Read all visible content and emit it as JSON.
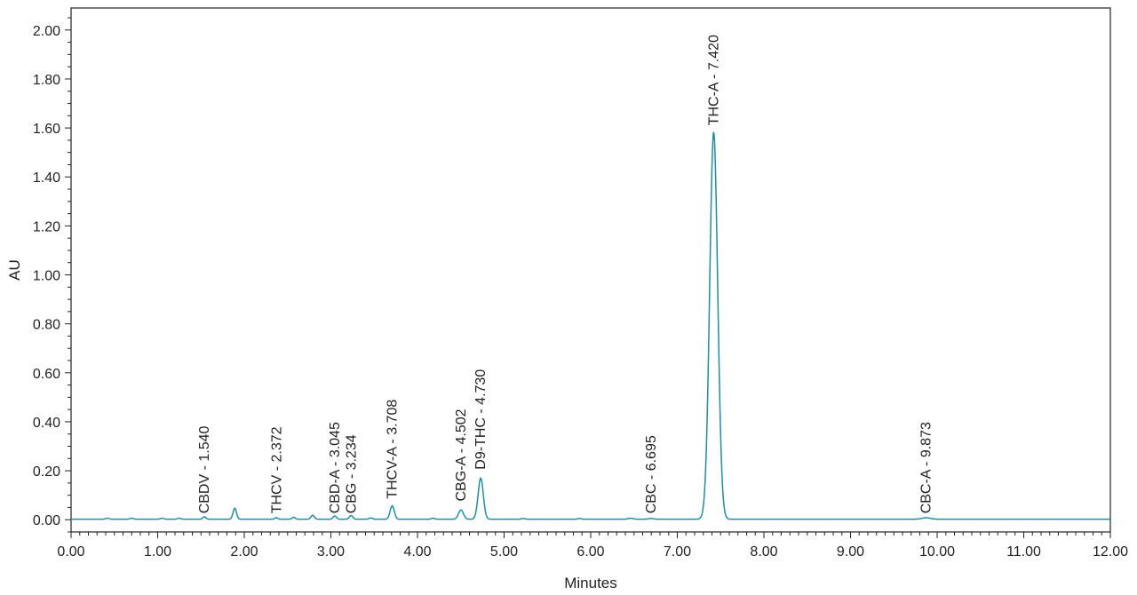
{
  "chart_data": {
    "type": "line",
    "title": "",
    "xlabel": "Minutes",
    "ylabel": "AU",
    "xlim": [
      0,
      12
    ],
    "ylim": [
      -0.05,
      2.09
    ],
    "x_ticks": [
      "0.00",
      "1.00",
      "2.00",
      "3.00",
      "4.00",
      "5.00",
      "6.00",
      "7.00",
      "8.00",
      "9.00",
      "10.00",
      "11.00",
      "12.00"
    ],
    "y_ticks": [
      "0.00",
      "0.20",
      "0.40",
      "0.60",
      "0.80",
      "1.00",
      "1.20",
      "1.40",
      "1.60",
      "1.80",
      "2.00"
    ],
    "grid": false,
    "line_color": "#1b8fa8",
    "baseline": 0.002,
    "peaks": [
      {
        "rt": 0.42,
        "height": 0.004,
        "width": 0.02
      },
      {
        "rt": 0.7,
        "height": 0.004,
        "width": 0.02
      },
      {
        "rt": 1.05,
        "height": 0.004,
        "width": 0.02
      },
      {
        "rt": 1.25,
        "height": 0.004,
        "width": 0.02
      },
      {
        "rt": 1.54,
        "height": 0.01,
        "width": 0.018
      },
      {
        "rt": 1.89,
        "height": 0.045,
        "width": 0.02
      },
      {
        "rt": 2.37,
        "height": 0.006,
        "width": 0.018
      },
      {
        "rt": 2.57,
        "height": 0.008,
        "width": 0.018
      },
      {
        "rt": 2.79,
        "height": 0.016,
        "width": 0.02
      },
      {
        "rt": 3.045,
        "height": 0.013,
        "width": 0.02
      },
      {
        "rt": 3.234,
        "height": 0.015,
        "width": 0.02
      },
      {
        "rt": 3.46,
        "height": 0.005,
        "width": 0.02
      },
      {
        "rt": 3.708,
        "height": 0.055,
        "width": 0.024
      },
      {
        "rt": 4.18,
        "height": 0.004,
        "width": 0.02
      },
      {
        "rt": 4.502,
        "height": 0.038,
        "width": 0.028
      },
      {
        "rt": 4.73,
        "height": 0.168,
        "width": 0.03
      },
      {
        "rt": 5.22,
        "height": 0.003,
        "width": 0.02
      },
      {
        "rt": 5.87,
        "height": 0.003,
        "width": 0.02
      },
      {
        "rt": 6.46,
        "height": 0.004,
        "width": 0.03
      },
      {
        "rt": 6.695,
        "height": 0.003,
        "width": 0.03
      },
      {
        "rt": 7.42,
        "height": 1.58,
        "width": 0.046
      },
      {
        "rt": 9.873,
        "height": 0.006,
        "width": 0.05
      }
    ],
    "annotations": [
      {
        "text": "CBDV - 1.540",
        "rt": 1.54,
        "anchor_y": 0.025
      },
      {
        "text": "THCV - 2.372",
        "rt": 2.372,
        "anchor_y": 0.025
      },
      {
        "text": "CBD-A - 3.045",
        "rt": 3.045,
        "anchor_y": 0.025
      },
      {
        "text": "CBG - 3.234",
        "rt": 3.234,
        "anchor_y": 0.025
      },
      {
        "text": "THCV-A - 3.708",
        "rt": 3.708,
        "anchor_y": 0.085
      },
      {
        "text": "CBG-A - 4.502",
        "rt": 4.502,
        "anchor_y": 0.075
      },
      {
        "text": "D9-THC - 4.730",
        "rt": 4.73,
        "anchor_y": 0.205
      },
      {
        "text": "CBC - 6.695",
        "rt": 6.695,
        "anchor_y": 0.025
      },
      {
        "text": "THC-A - 7.420",
        "rt": 7.42,
        "anchor_y": 1.61
      },
      {
        "text": "CBC-A - 9.873",
        "rt": 9.873,
        "anchor_y": 0.025
      }
    ]
  }
}
